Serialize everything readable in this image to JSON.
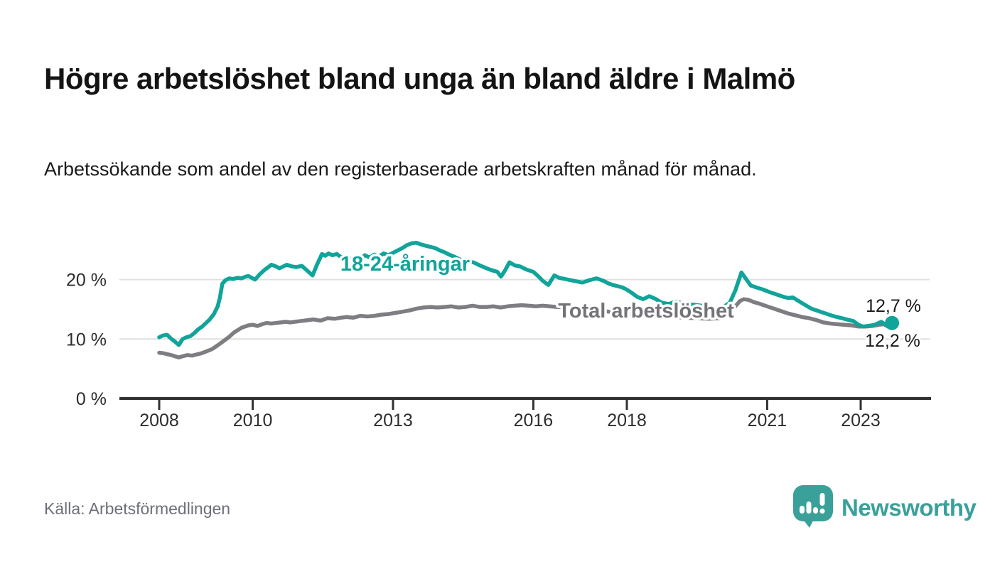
{
  "header": {
    "title": "Högre arbetslöshet bland unga än bland äldre i Malmö",
    "subtitle": "Arbetssökande som andel av den registerbaserade arbetskraften månad för månad."
  },
  "footer": {
    "source": "Källa: Arbetsförmedlingen",
    "brand": "Newsworthy",
    "logo_icon": "bar-chart-speech-bubble-icon"
  },
  "colors": {
    "accent_teal": "#10a49a",
    "series_gray": "#7d7d82",
    "label_gray": "#73737a",
    "grid": "#e0e0e0",
    "axis": "#323232",
    "tick_text": "#2d2d2d",
    "value_label": "#1a1a1a",
    "logo_teal": "#3aa09a",
    "background": "#ffffff"
  },
  "chart_data": {
    "type": "line",
    "title": "Högre arbetslöshet bland unga än bland äldre i Malmö",
    "xlabel": "",
    "ylabel": "Arbetssökande som andel av den registerbaserade arbetskraften",
    "unit": "%",
    "grid": "horizontal",
    "legend_position": "inline-labels",
    "x_axis": {
      "range": [
        2007.2,
        2024.5
      ],
      "ticks": [
        {
          "value": 2008,
          "label": "2008"
        },
        {
          "value": 2010,
          "label": "2010"
        },
        {
          "value": 2013,
          "label": "2013"
        },
        {
          "value": 2016,
          "label": "2016"
        },
        {
          "value": 2018,
          "label": "2018"
        },
        {
          "value": 2021,
          "label": "2021"
        },
        {
          "value": 2023,
          "label": "2023"
        }
      ]
    },
    "y_axis": {
      "range": [
        0,
        27
      ],
      "ticks": [
        {
          "value": 0,
          "label": "0 %"
        },
        {
          "value": 10,
          "label": "10 %"
        },
        {
          "value": 20,
          "label": "20 %"
        }
      ]
    },
    "series": [
      {
        "id": "youth",
        "name": "18-24-åringar",
        "color": "#10a49a",
        "label_color": "#10a49a",
        "end_label": "12,7 %",
        "end_value": 12.7,
        "points": [
          [
            2008.0,
            10.3
          ],
          [
            2008.08,
            10.6
          ],
          [
            2008.17,
            10.7
          ],
          [
            2008.25,
            10.1
          ],
          [
            2008.33,
            9.6
          ],
          [
            2008.42,
            9.0
          ],
          [
            2008.5,
            10.0
          ],
          [
            2008.58,
            10.3
          ],
          [
            2008.67,
            10.5
          ],
          [
            2008.75,
            11.0
          ],
          [
            2008.83,
            11.6
          ],
          [
            2008.92,
            12.1
          ],
          [
            2009.0,
            12.7
          ],
          [
            2009.08,
            13.3
          ],
          [
            2009.17,
            14.2
          ],
          [
            2009.25,
            15.5
          ],
          [
            2009.3,
            17.0
          ],
          [
            2009.35,
            19.3
          ],
          [
            2009.42,
            19.9
          ],
          [
            2009.5,
            20.2
          ],
          [
            2009.58,
            20.1
          ],
          [
            2009.67,
            20.3
          ],
          [
            2009.76,
            20.2
          ],
          [
            2009.85,
            20.5
          ],
          [
            2009.91,
            20.6
          ],
          [
            2010.0,
            20.2
          ],
          [
            2010.05,
            20.0
          ],
          [
            2010.15,
            20.9
          ],
          [
            2010.25,
            21.6
          ],
          [
            2010.4,
            22.5
          ],
          [
            2010.5,
            22.2
          ],
          [
            2010.57,
            21.9
          ],
          [
            2010.65,
            22.2
          ],
          [
            2010.73,
            22.5
          ],
          [
            2010.85,
            22.2
          ],
          [
            2010.93,
            22.1
          ],
          [
            2011.05,
            22.3
          ],
          [
            2011.15,
            21.6
          ],
          [
            2011.28,
            20.7
          ],
          [
            2011.38,
            22.6
          ],
          [
            2011.48,
            24.3
          ],
          [
            2011.55,
            24.0
          ],
          [
            2011.62,
            24.4
          ],
          [
            2011.7,
            24.1
          ],
          [
            2011.8,
            24.3
          ],
          [
            2011.9,
            23.7
          ],
          [
            2012.0,
            23.9
          ],
          [
            2012.1,
            23.4
          ],
          [
            2012.2,
            23.9
          ],
          [
            2012.3,
            23.5
          ],
          [
            2012.4,
            24.1
          ],
          [
            2012.5,
            23.7
          ],
          [
            2012.6,
            24.2
          ],
          [
            2012.7,
            23.9
          ],
          [
            2012.8,
            24.4
          ],
          [
            2012.9,
            24.1
          ],
          [
            2013.0,
            24.5
          ],
          [
            2013.1,
            24.9
          ],
          [
            2013.2,
            25.3
          ],
          [
            2013.3,
            25.8
          ],
          [
            2013.4,
            26.1
          ],
          [
            2013.5,
            26.2
          ],
          [
            2013.6,
            25.9
          ],
          [
            2013.7,
            25.7
          ],
          [
            2013.8,
            25.5
          ],
          [
            2013.9,
            25.3
          ],
          [
            2014.0,
            24.9
          ],
          [
            2014.1,
            24.6
          ],
          [
            2014.2,
            24.2
          ],
          [
            2014.3,
            23.9
          ],
          [
            2014.4,
            23.5
          ],
          [
            2014.5,
            23.2
          ],
          [
            2014.6,
            23.0
          ],
          [
            2014.72,
            22.9
          ],
          [
            2014.85,
            22.4
          ],
          [
            2015.0,
            21.9
          ],
          [
            2015.1,
            21.6
          ],
          [
            2015.23,
            21.3
          ],
          [
            2015.31,
            20.5
          ],
          [
            2015.4,
            21.6
          ],
          [
            2015.49,
            22.9
          ],
          [
            2015.6,
            22.4
          ],
          [
            2015.72,
            22.2
          ],
          [
            2015.85,
            21.7
          ],
          [
            2016.0,
            21.3
          ],
          [
            2016.1,
            20.6
          ],
          [
            2016.2,
            19.8
          ],
          [
            2016.32,
            19.1
          ],
          [
            2016.45,
            20.7
          ],
          [
            2016.55,
            20.3
          ],
          [
            2016.68,
            20.1
          ],
          [
            2016.8,
            19.9
          ],
          [
            2016.92,
            19.7
          ],
          [
            2017.05,
            19.5
          ],
          [
            2017.2,
            19.9
          ],
          [
            2017.35,
            20.2
          ],
          [
            2017.5,
            19.8
          ],
          [
            2017.62,
            19.3
          ],
          [
            2017.75,
            19.0
          ],
          [
            2017.9,
            18.7
          ],
          [
            2018.0,
            18.3
          ],
          [
            2018.1,
            17.8
          ],
          [
            2018.22,
            17.1
          ],
          [
            2018.35,
            16.7
          ],
          [
            2018.48,
            17.2
          ],
          [
            2018.6,
            16.8
          ],
          [
            2018.75,
            16.1
          ],
          [
            2018.9,
            15.9
          ],
          [
            2019.05,
            16.3
          ],
          [
            2019.2,
            16.0
          ],
          [
            2019.4,
            15.8
          ],
          [
            2019.6,
            15.6
          ],
          [
            2019.75,
            15.3
          ],
          [
            2019.9,
            15.1
          ],
          [
            2020.05,
            15.3
          ],
          [
            2020.2,
            16.1
          ],
          [
            2020.32,
            18.2
          ],
          [
            2020.45,
            21.2
          ],
          [
            2020.55,
            20.1
          ],
          [
            2020.65,
            19.0
          ],
          [
            2020.8,
            18.6
          ],
          [
            2020.92,
            18.3
          ],
          [
            2021.05,
            17.9
          ],
          [
            2021.2,
            17.5
          ],
          [
            2021.35,
            17.1
          ],
          [
            2021.45,
            16.9
          ],
          [
            2021.55,
            17.0
          ],
          [
            2021.65,
            16.5
          ],
          [
            2021.8,
            15.8
          ],
          [
            2021.95,
            15.1
          ],
          [
            2022.1,
            14.7
          ],
          [
            2022.25,
            14.3
          ],
          [
            2022.4,
            13.9
          ],
          [
            2022.55,
            13.6
          ],
          [
            2022.7,
            13.3
          ],
          [
            2022.85,
            13.0
          ],
          [
            2022.95,
            12.4
          ],
          [
            2023.05,
            12.1
          ],
          [
            2023.15,
            12.2
          ],
          [
            2023.3,
            12.4
          ],
          [
            2023.44,
            12.9
          ],
          [
            2023.55,
            12.3
          ],
          [
            2023.67,
            12.7
          ]
        ]
      },
      {
        "id": "total",
        "name": "Total arbetslöshet",
        "color": "#7d7d82",
        "label_color": "#73737a",
        "end_label": "12,2 %",
        "end_value": 12.2,
        "points": [
          [
            2008.0,
            7.7
          ],
          [
            2008.1,
            7.6
          ],
          [
            2008.2,
            7.4
          ],
          [
            2008.3,
            7.2
          ],
          [
            2008.42,
            6.9
          ],
          [
            2008.5,
            7.1
          ],
          [
            2008.6,
            7.3
          ],
          [
            2008.7,
            7.2
          ],
          [
            2008.8,
            7.4
          ],
          [
            2008.9,
            7.6
          ],
          [
            2009.0,
            7.9
          ],
          [
            2009.13,
            8.3
          ],
          [
            2009.26,
            9.0
          ],
          [
            2009.4,
            9.8
          ],
          [
            2009.5,
            10.4
          ],
          [
            2009.6,
            11.1
          ],
          [
            2009.76,
            11.9
          ],
          [
            2009.91,
            12.3
          ],
          [
            2010.0,
            12.4
          ],
          [
            2010.1,
            12.2
          ],
          [
            2010.2,
            12.5
          ],
          [
            2010.3,
            12.7
          ],
          [
            2010.4,
            12.6
          ],
          [
            2010.5,
            12.7
          ],
          [
            2010.6,
            12.8
          ],
          [
            2010.7,
            12.9
          ],
          [
            2010.8,
            12.8
          ],
          [
            2010.9,
            12.9
          ],
          [
            2011.0,
            13.0
          ],
          [
            2011.1,
            13.1
          ],
          [
            2011.2,
            13.2
          ],
          [
            2011.3,
            13.3
          ],
          [
            2011.45,
            13.1
          ],
          [
            2011.6,
            13.5
          ],
          [
            2011.75,
            13.4
          ],
          [
            2011.9,
            13.6
          ],
          [
            2012.0,
            13.7
          ],
          [
            2012.15,
            13.6
          ],
          [
            2012.3,
            13.9
          ],
          [
            2012.45,
            13.8
          ],
          [
            2012.6,
            13.9
          ],
          [
            2012.75,
            14.1
          ],
          [
            2012.9,
            14.2
          ],
          [
            2013.05,
            14.4
          ],
          [
            2013.2,
            14.6
          ],
          [
            2013.35,
            14.8
          ],
          [
            2013.5,
            15.1
          ],
          [
            2013.65,
            15.3
          ],
          [
            2013.8,
            15.4
          ],
          [
            2013.95,
            15.3
          ],
          [
            2014.1,
            15.4
          ],
          [
            2014.25,
            15.5
          ],
          [
            2014.4,
            15.3
          ],
          [
            2014.55,
            15.4
          ],
          [
            2014.7,
            15.6
          ],
          [
            2014.85,
            15.4
          ],
          [
            2015.0,
            15.4
          ],
          [
            2015.15,
            15.5
          ],
          [
            2015.3,
            15.3
          ],
          [
            2015.45,
            15.5
          ],
          [
            2015.6,
            15.6
          ],
          [
            2015.75,
            15.7
          ],
          [
            2015.9,
            15.6
          ],
          [
            2016.05,
            15.5
          ],
          [
            2016.2,
            15.6
          ],
          [
            2016.35,
            15.5
          ],
          [
            2016.5,
            15.4
          ],
          [
            2016.7,
            15.3
          ],
          [
            2016.9,
            15.2
          ],
          [
            2017.1,
            15.0
          ],
          [
            2017.3,
            14.9
          ],
          [
            2017.5,
            14.7
          ],
          [
            2017.75,
            14.5
          ],
          [
            2018.0,
            14.3
          ],
          [
            2018.25,
            14.1
          ],
          [
            2018.5,
            13.9
          ],
          [
            2018.75,
            13.8
          ],
          [
            2019.0,
            13.7
          ],
          [
            2019.25,
            13.6
          ],
          [
            2019.5,
            13.5
          ],
          [
            2019.75,
            13.4
          ],
          [
            2020.0,
            13.5
          ],
          [
            2020.15,
            13.9
          ],
          [
            2020.3,
            15.3
          ],
          [
            2020.42,
            16.4
          ],
          [
            2020.5,
            16.7
          ],
          [
            2020.6,
            16.6
          ],
          [
            2020.72,
            16.2
          ],
          [
            2020.85,
            15.9
          ],
          [
            2021.0,
            15.5
          ],
          [
            2021.15,
            15.1
          ],
          [
            2021.3,
            14.7
          ],
          [
            2021.45,
            14.3
          ],
          [
            2021.6,
            14.0
          ],
          [
            2021.75,
            13.7
          ],
          [
            2021.9,
            13.5
          ],
          [
            2022.05,
            13.2
          ],
          [
            2022.2,
            12.8
          ],
          [
            2022.35,
            12.6
          ],
          [
            2022.5,
            12.5
          ],
          [
            2022.65,
            12.4
          ],
          [
            2022.8,
            12.3
          ],
          [
            2022.95,
            12.1
          ],
          [
            2023.1,
            12.1
          ],
          [
            2023.25,
            12.2
          ],
          [
            2023.4,
            12.4
          ],
          [
            2023.5,
            12.5
          ],
          [
            2023.58,
            12.1
          ],
          [
            2023.67,
            12.2
          ]
        ]
      }
    ]
  }
}
